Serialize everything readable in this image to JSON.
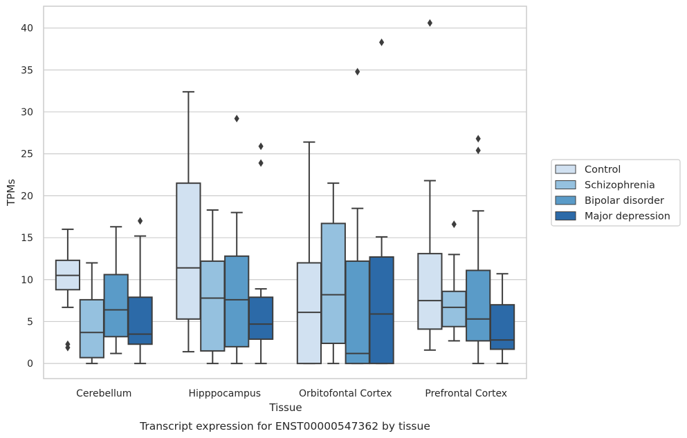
{
  "caption": "Transcript expression for ENST00000547362 by tissue",
  "chart_data": {
    "type": "boxplot",
    "xlabel": "Tissue",
    "ylabel": "TPMs",
    "ylim": [
      -1.8,
      42.6
    ],
    "yticks": [
      0,
      5,
      10,
      15,
      20,
      25,
      30,
      35,
      40
    ],
    "grid": "horizontal",
    "legend_position": "right",
    "categories": [
      "Cerebellum",
      "Hipppocampus",
      "Orbitofontal Cortex",
      "Prefrontal Cortex"
    ],
    "series": [
      {
        "name": "Control",
        "color": "#d1e1f1",
        "boxes": [
          {
            "whislo": 6.7,
            "q1": 8.8,
            "med": 10.5,
            "q3": 12.3,
            "whishi": 16.0,
            "fliers": [
              1.9,
              2.3
            ]
          },
          {
            "whislo": 1.4,
            "q1": 5.3,
            "med": 11.4,
            "q3": 21.5,
            "whishi": 32.4,
            "fliers": []
          },
          {
            "whislo": 0.0,
            "q1": 0.0,
            "med": 6.1,
            "q3": 12.0,
            "whishi": 26.4,
            "fliers": []
          },
          {
            "whislo": 1.6,
            "q1": 4.1,
            "med": 7.5,
            "q3": 13.1,
            "whishi": 21.8,
            "fliers": [
              40.6
            ]
          }
        ]
      },
      {
        "name": "Schizophrenia",
        "color": "#95c1df",
        "boxes": [
          {
            "whislo": 0.0,
            "q1": 0.7,
            "med": 3.7,
            "q3": 7.6,
            "whishi": 12.0,
            "fliers": []
          },
          {
            "whislo": 0.0,
            "q1": 1.5,
            "med": 7.8,
            "q3": 12.2,
            "whishi": 18.3,
            "fliers": []
          },
          {
            "whislo": 0.0,
            "q1": 2.4,
            "med": 8.2,
            "q3": 16.7,
            "whishi": 21.5,
            "fliers": []
          },
          {
            "whislo": 2.7,
            "q1": 4.4,
            "med": 6.7,
            "q3": 8.6,
            "whishi": 13.0,
            "fliers": [
              16.6
            ]
          }
        ]
      },
      {
        "name": "Bipolar disorder",
        "color": "#5a9bc8",
        "boxes": [
          {
            "whislo": 1.2,
            "q1": 3.2,
            "med": 6.4,
            "q3": 10.6,
            "whishi": 16.3,
            "fliers": []
          },
          {
            "whislo": 0.0,
            "q1": 2.0,
            "med": 7.6,
            "q3": 12.8,
            "whishi": 18.0,
            "fliers": [
              29.2
            ]
          },
          {
            "whislo": 0.0,
            "q1": 0.0,
            "med": 1.2,
            "q3": 12.2,
            "whishi": 18.5,
            "fliers": [
              34.8
            ]
          },
          {
            "whislo": 0.0,
            "q1": 2.7,
            "med": 5.3,
            "q3": 11.1,
            "whishi": 18.2,
            "fliers": [
              25.4,
              26.8
            ]
          }
        ]
      },
      {
        "name": "Major depression",
        "color": "#2c6aa8",
        "boxes": [
          {
            "whislo": 0.0,
            "q1": 2.3,
            "med": 3.5,
            "q3": 7.9,
            "whishi": 15.2,
            "fliers": [
              17.0
            ]
          },
          {
            "whislo": 0.0,
            "q1": 2.9,
            "med": 4.7,
            "q3": 7.9,
            "whishi": 8.9,
            "fliers": [
              23.9,
              25.9
            ]
          },
          {
            "whislo": 0.0,
            "q1": 0.0,
            "med": 5.9,
            "q3": 12.7,
            "whishi": 15.1,
            "fliers": [
              38.3
            ]
          },
          {
            "whislo": 0.0,
            "q1": 1.7,
            "med": 2.8,
            "q3": 7.0,
            "whishi": 10.7,
            "fliers": []
          }
        ]
      }
    ]
  }
}
